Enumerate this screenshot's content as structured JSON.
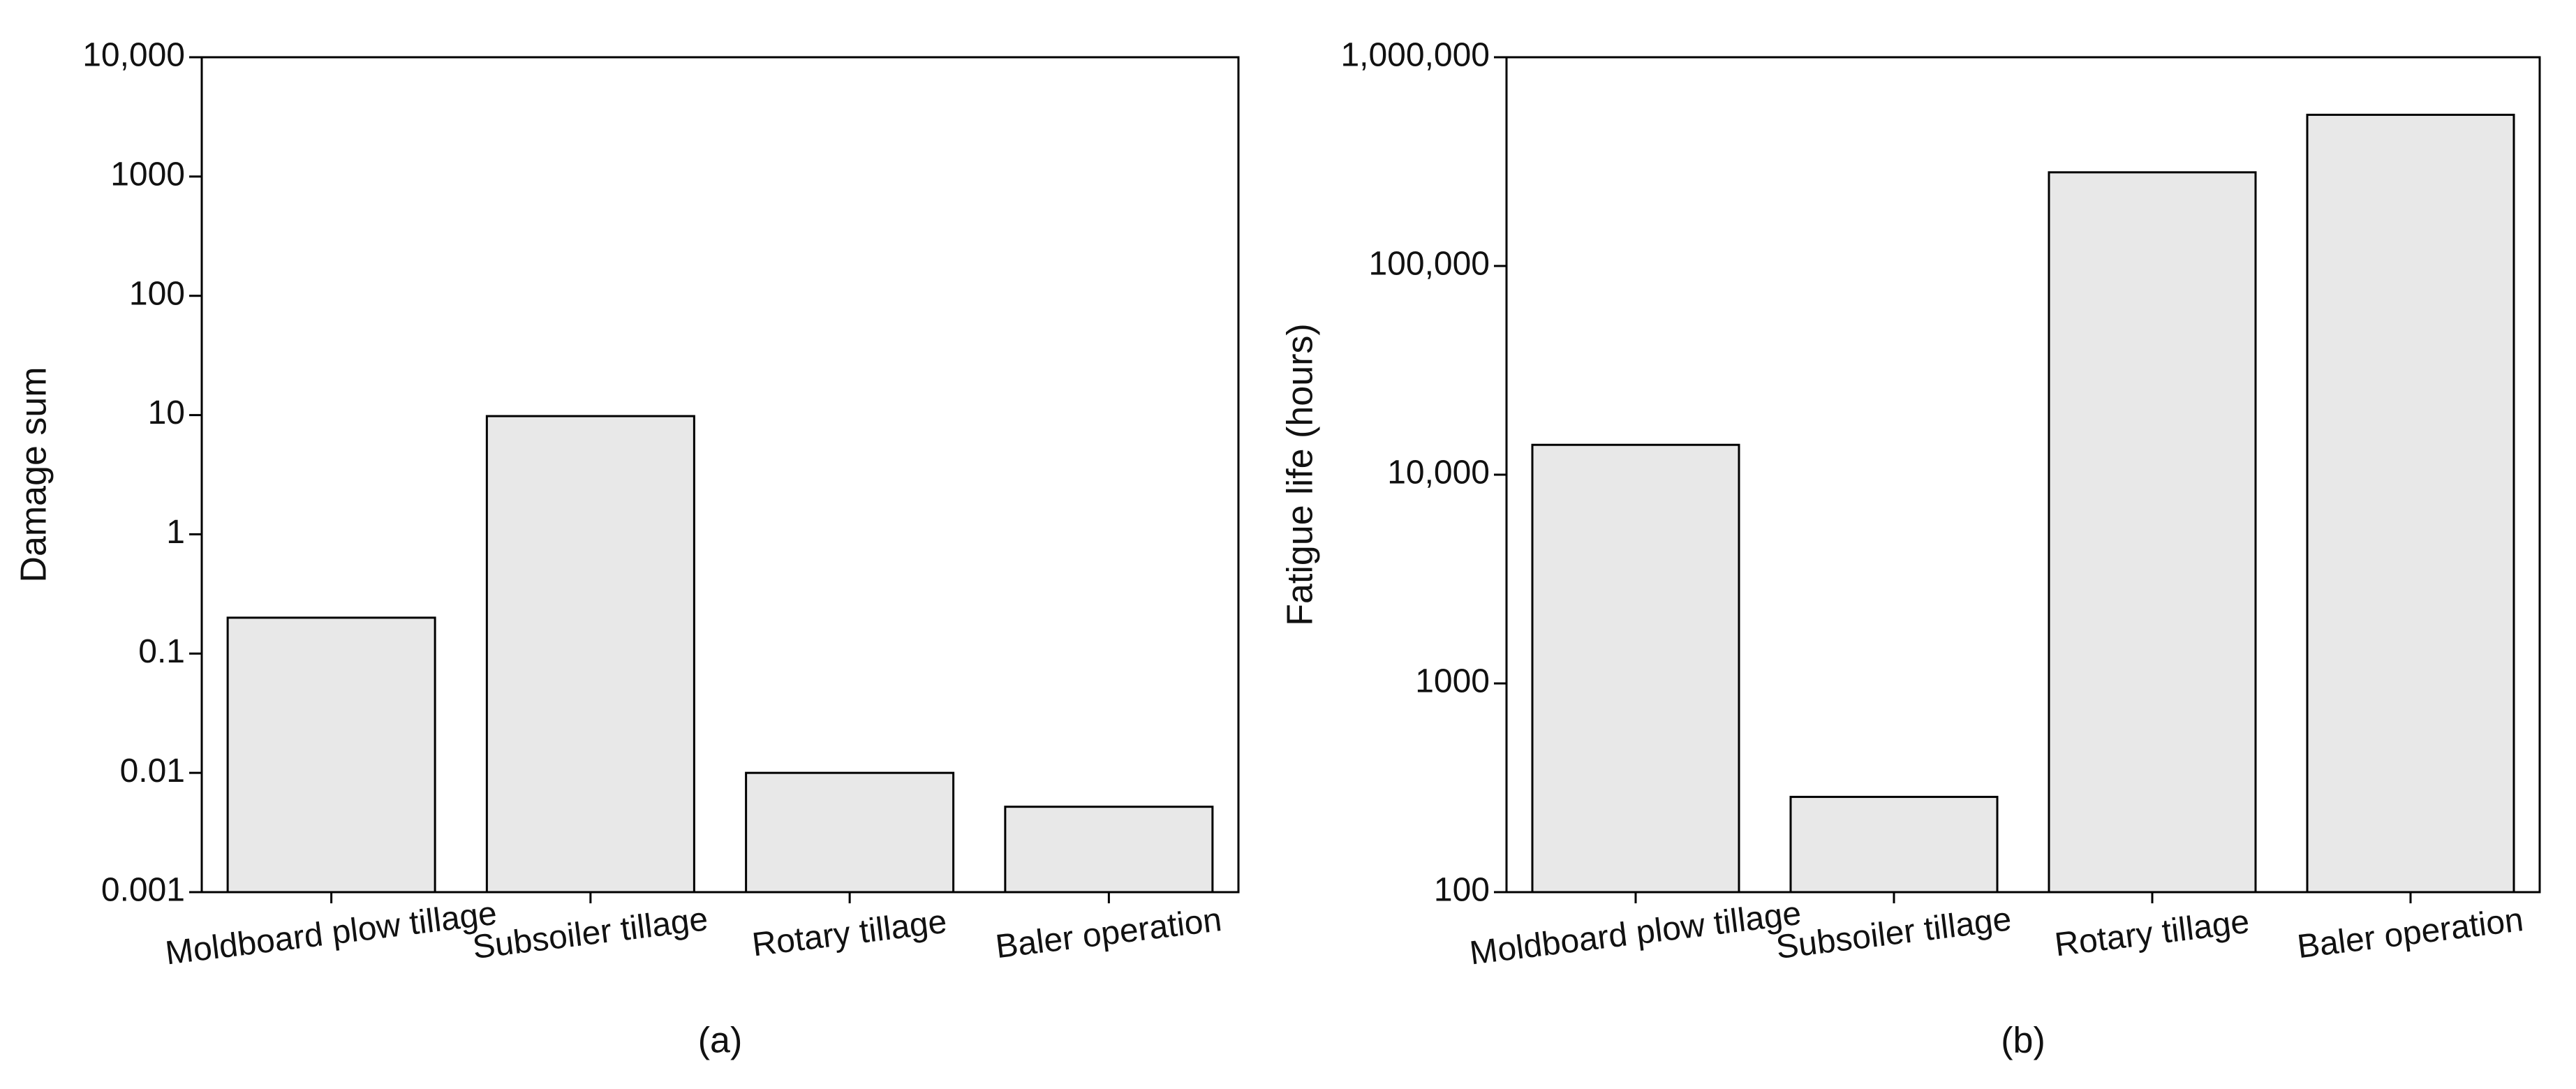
{
  "chart_data": [
    {
      "type": "bar",
      "caption": "(a)",
      "y_label": "Damage sum",
      "log_scale": true,
      "categories": [
        "Moldboard plow tillage",
        "Subsoiler tillage",
        "Rotary tillage",
        "Baler operation"
      ],
      "values": [
        0.2,
        9.8,
        0.01,
        0.0052
      ],
      "color": "#e8e8e8",
      "ylim": [
        0.001,
        10000
      ],
      "yticks": [
        0.001,
        0.01,
        0.1,
        1,
        10,
        100,
        1000,
        {
          "value": 10000,
          "label": "10,000"
        }
      ]
    },
    {
      "type": "bar",
      "caption": "(b)",
      "y_label": "Fatigue life (hours)",
      "log_scale": true,
      "categories": [
        "Moldboard plow tillage",
        "Subsoiler tillage",
        "Rotary tillage",
        "Baler operation"
      ],
      "values": [
        13900,
        286,
        281000,
        530000
      ],
      "color": "#e8e8e8",
      "ylim": [
        100,
        1000000
      ],
      "yticks": [
        100,
        1000,
        {
          "value": 10000,
          "label": "10,000"
        },
        {
          "value": 100000,
          "label": "100,000"
        },
        {
          "value": 1000000,
          "label": "1,000,000"
        }
      ]
    }
  ]
}
